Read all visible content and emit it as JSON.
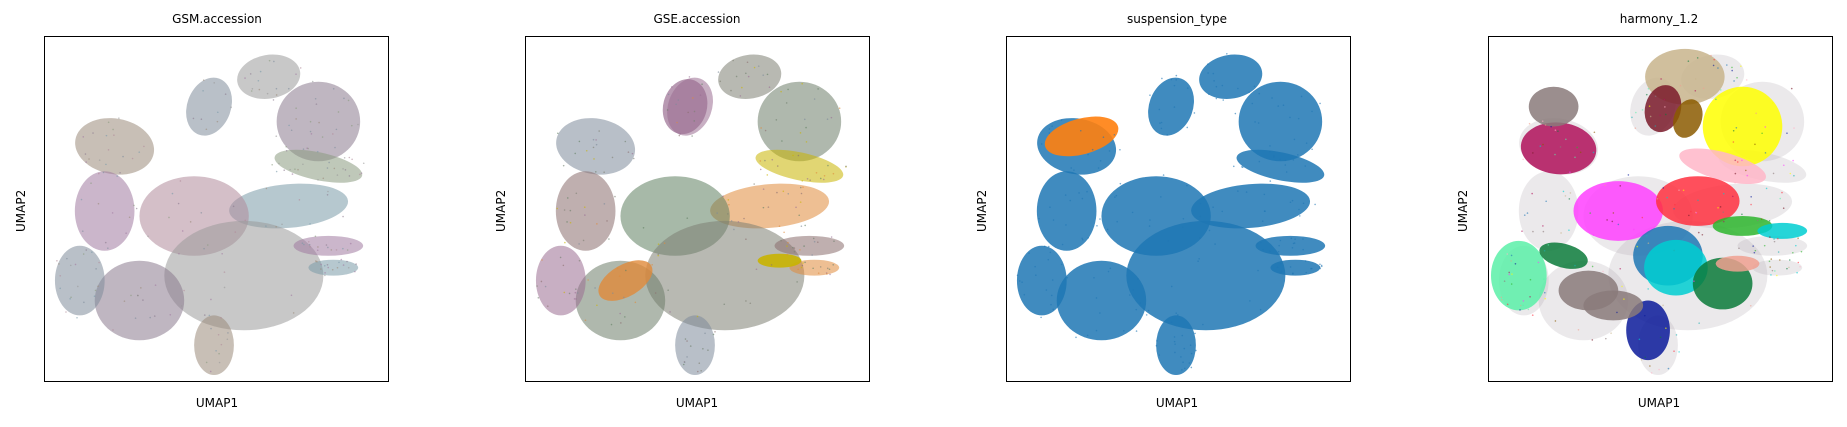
{
  "chart_data": [
    {
      "type": "scatter",
      "title": "GSM.accession",
      "xlabel": "UMAP1",
      "ylabel": "UMAP2",
      "grid": false,
      "ticks": false,
      "colors": [
        "#9a9a9a",
        "#8a7a8e",
        "#7f8c9b",
        "#9b8a7a",
        "#a07aa0",
        "#7a9aa8",
        "#8b9b7f",
        "#b08a9a"
      ]
    },
    {
      "type": "scatter",
      "title": "GSE.accession",
      "xlabel": "UMAP1",
      "ylabel": "UMAP2",
      "grid": false,
      "ticks": false,
      "colors": [
        "#7d7f72",
        "#6e7d6a",
        "#9a6e92",
        "#7d8a9a",
        "#8a6e6e",
        "#e08a3a",
        "#c9b400",
        "#5f7f60"
      ]
    },
    {
      "type": "scatter",
      "title": "suspension_type",
      "xlabel": "UMAP1",
      "ylabel": "UMAP2",
      "grid": false,
      "ticks": false,
      "colors": [
        "#1f77b4",
        "#ff7f0e"
      ]
    },
    {
      "type": "scatter",
      "title": "harmony_1.2",
      "xlabel": "UMAP1",
      "ylabel": "UMAP2",
      "grid": false,
      "ticks": false,
      "colors": [
        "#c8b48c",
        "#7a1a2a",
        "#8b5a00",
        "#ffff00",
        "#b0105a",
        "#ffb6c8",
        "#ff40ff",
        "#ff3040",
        "#1ab0b0",
        "#2db52d",
        "#00ced1",
        "#1f77b4",
        "#0a1a9a",
        "#5af0a8",
        "#0a7a3a",
        "#f0a090",
        "#8a7a7a"
      ]
    }
  ]
}
